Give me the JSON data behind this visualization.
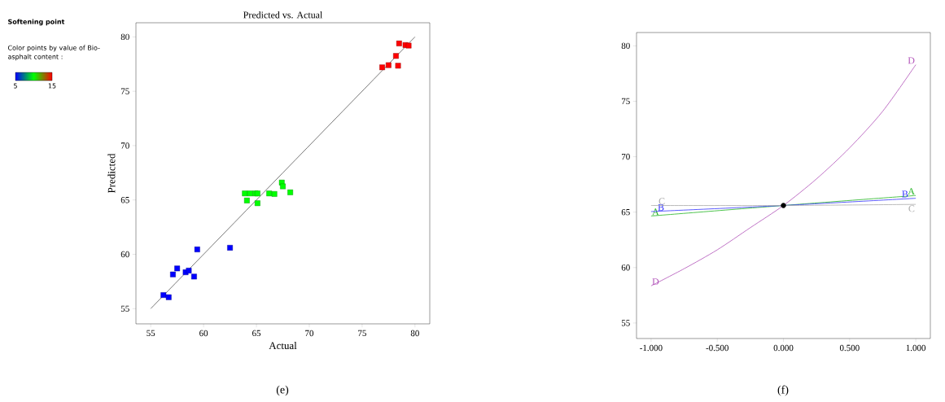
{
  "chart_data": [
    {
      "type": "scatter",
      "title": "Predicted vs. Actual",
      "xlabel": "Actual",
      "ylabel": "Predicted",
      "clabel": "Color points by value of Bio-asphalt content :",
      "annotations": [
        "Softening point",
        "(e)"
      ],
      "xlim": [
        53.6,
        81.4
      ],
      "ylim": [
        53.6,
        81.3
      ],
      "xticks": [
        55,
        60,
        65,
        70,
        75,
        80
      ],
      "yticks": [
        55,
        60,
        65,
        70,
        75,
        80
      ],
      "clim": [
        5,
        15
      ],
      "cticks": [
        5,
        15
      ],
      "marker": "square",
      "grid": false,
      "series": [
        {
          "x": [
            78.5,
            79.1,
            79.4,
            78.2,
            77.5,
            76.9,
            78.4,
            63.9,
            64.4,
            64.9,
            65.1,
            66.2,
            66.7,
            64.1,
            65.1,
            67.4,
            67.5,
            68.2,
            59.4,
            62.5,
            57.5,
            57.1,
            58.3,
            58.6,
            59.1,
            56.2,
            56.7
          ],
          "values": [
            79.4,
            79.25,
            79.2,
            78.25,
            77.4,
            77.2,
            77.35,
            65.6,
            65.6,
            65.6,
            65.6,
            65.6,
            65.55,
            64.95,
            64.7,
            66.6,
            66.25,
            65.7,
            60.45,
            60.6,
            58.7,
            58.15,
            58.35,
            58.5,
            57.95,
            56.25,
            56.05
          ],
          "cvalues": [
            15,
            15,
            15,
            15,
            15,
            15,
            15,
            10,
            10,
            10,
            10,
            10,
            10,
            10,
            10,
            10,
            10,
            10,
            5,
            5,
            5,
            5,
            5,
            5,
            5,
            5,
            5
          ],
          "colors": [
            "#ff0000",
            "#ff0000",
            "#ff0000",
            "#ff0000",
            "#ff0000",
            "#ff0000",
            "#ff0000",
            "#00ff00",
            "#00ff00",
            "#00ff00",
            "#00ff00",
            "#00ff00",
            "#00ff00",
            "#00ff00",
            "#00ff00",
            "#00ff00",
            "#00ff00",
            "#00ff00",
            "#0000ff",
            "#0000ff",
            "#0000ff",
            "#0000ff",
            "#0000ff",
            "#0000ff",
            "#0000ff",
            "#0000ff",
            "#0000ff"
          ]
        },
        {
          "type": "line",
          "x": [
            55,
            80
          ],
          "values": [
            55,
            80
          ],
          "color": "#555555",
          "marker": "none"
        }
      ]
    },
    {
      "type": "line",
      "annotations": [
        "(f)"
      ],
      "xlim": [
        -1.11,
        1.11
      ],
      "ylim": [
        53.6,
        81.2
      ],
      "xticks": [
        {
          "value": -1,
          "label": "-1.000"
        },
        {
          "value": -0.5,
          "label": "-0.500"
        },
        {
          "value": 0,
          "label": "0.000"
        },
        {
          "value": 0.5,
          "label": "0.500"
        },
        {
          "value": 1,
          "label": "1.000"
        }
      ],
      "yticks": [
        55,
        60,
        65,
        70,
        75,
        80
      ],
      "marker": "none",
      "grid": false,
      "series": [
        {
          "name": "A",
          "color": "#22b422",
          "x": [
            -1,
            0,
            1
          ],
          "values": [
            64.65,
            65.6,
            66.5
          ]
        },
        {
          "name": "B",
          "color": "#3333ff",
          "x": [
            -1,
            0,
            1
          ],
          "values": [
            65.05,
            65.6,
            66.25
          ]
        },
        {
          "name": "C",
          "color": "#aaaaaa",
          "x": [
            -1,
            0,
            1
          ],
          "values": [
            65.6,
            65.6,
            65.7
          ]
        },
        {
          "name": "D",
          "color": "#b050b8",
          "x": [
            -1,
            -0.75,
            -0.5,
            -0.25,
            0,
            0.25,
            0.5,
            0.75,
            1
          ],
          "values": [
            58.35,
            59.9,
            61.6,
            63.6,
            65.6,
            68.0,
            70.8,
            74.1,
            78.3
          ]
        },
        {
          "type": "scatter",
          "marker": "circle",
          "color": "#000000",
          "x": [
            0
          ],
          "values": [
            65.6
          ]
        }
      ]
    }
  ]
}
